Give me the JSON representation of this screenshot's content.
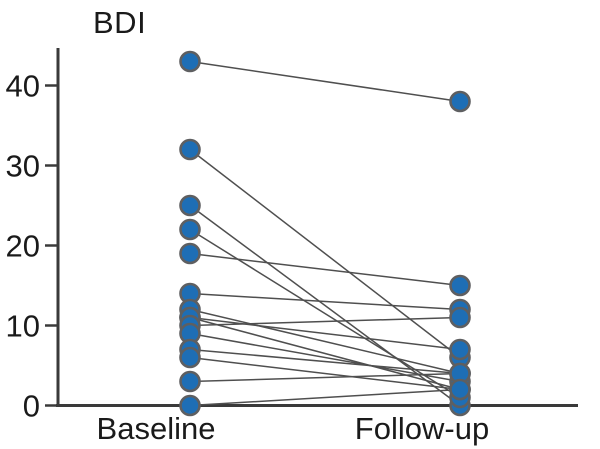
{
  "title": "BDI",
  "chart_data": {
    "type": "scatter",
    "subtype": "paired-slope-graph",
    "title": "BDI",
    "categories": [
      "Baseline",
      "Follow-up"
    ],
    "xlabel": "",
    "ylabel": "BDI",
    "ylim": [
      0,
      45
    ],
    "yticks": [
      0,
      10,
      20,
      30,
      40
    ],
    "grid": false,
    "legend": "none",
    "series": [
      {
        "name": "Baseline",
        "values": [
          43,
          32,
          25,
          22,
          19,
          14,
          12,
          11,
          11,
          10,
          9,
          7,
          6,
          3,
          0
        ]
      },
      {
        "name": "Follow-up",
        "values": [
          38,
          6,
          0,
          1,
          15,
          12,
          4,
          7,
          2,
          11,
          3,
          4,
          2,
          4,
          2
        ]
      }
    ],
    "pairs": [
      [
        43,
        38
      ],
      [
        32,
        6
      ],
      [
        25,
        0
      ],
      [
        22,
        1
      ],
      [
        19,
        15
      ],
      [
        14,
        12
      ],
      [
        12,
        4
      ],
      [
        11,
        7
      ],
      [
        11,
        2
      ],
      [
        10,
        11
      ],
      [
        9,
        3
      ],
      [
        7,
        4
      ],
      [
        6,
        2
      ],
      [
        3,
        4
      ],
      [
        0,
        2
      ]
    ]
  },
  "style": {
    "marker_fill": "#1e6eb5",
    "marker_stroke": "#5e5f61",
    "connector_color": "#4f4f4f",
    "axis_color": "#3a3a3a",
    "text_color": "#1a1a1a",
    "background": "#ffffff"
  }
}
